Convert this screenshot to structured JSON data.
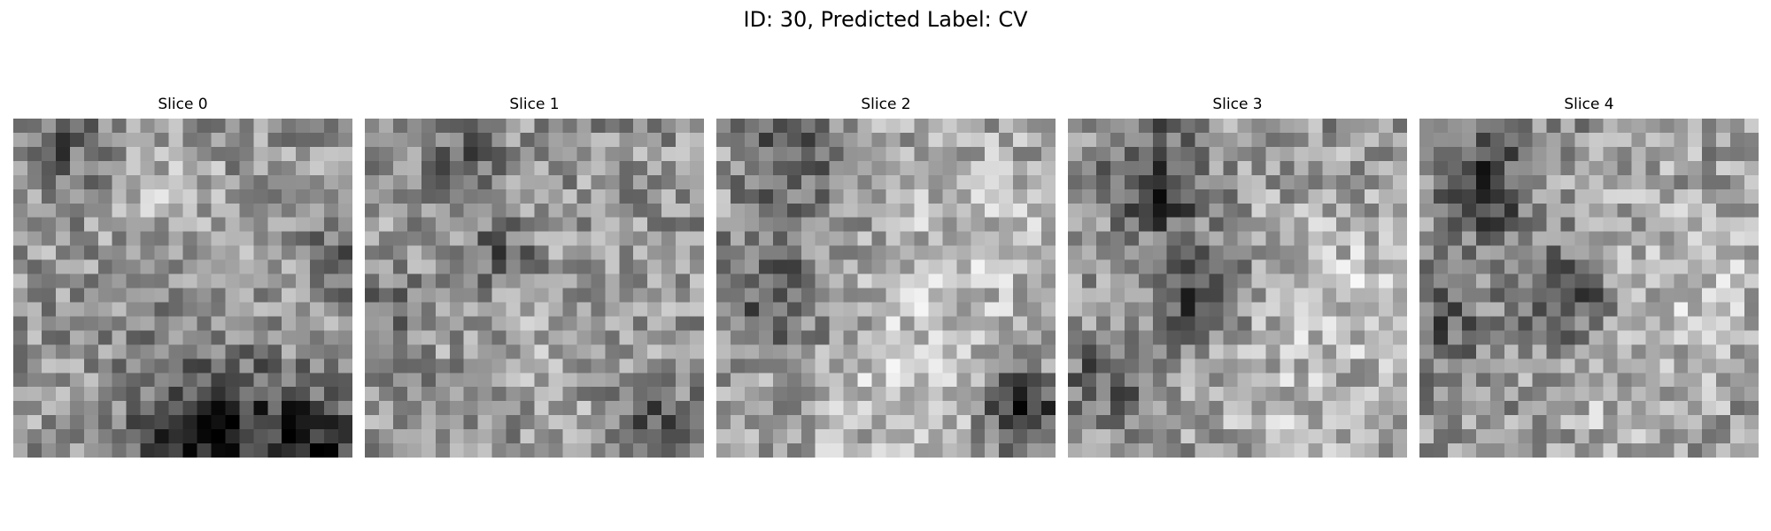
{
  "figure": {
    "title": "ID: 30, Predicted Label: CV"
  },
  "slices": [
    {
      "label": "Slice 0"
    },
    {
      "label": "Slice 1"
    },
    {
      "label": "Slice 2"
    },
    {
      "label": "Slice 3"
    },
    {
      "label": "Slice 4"
    }
  ],
  "colormap": "gray"
}
